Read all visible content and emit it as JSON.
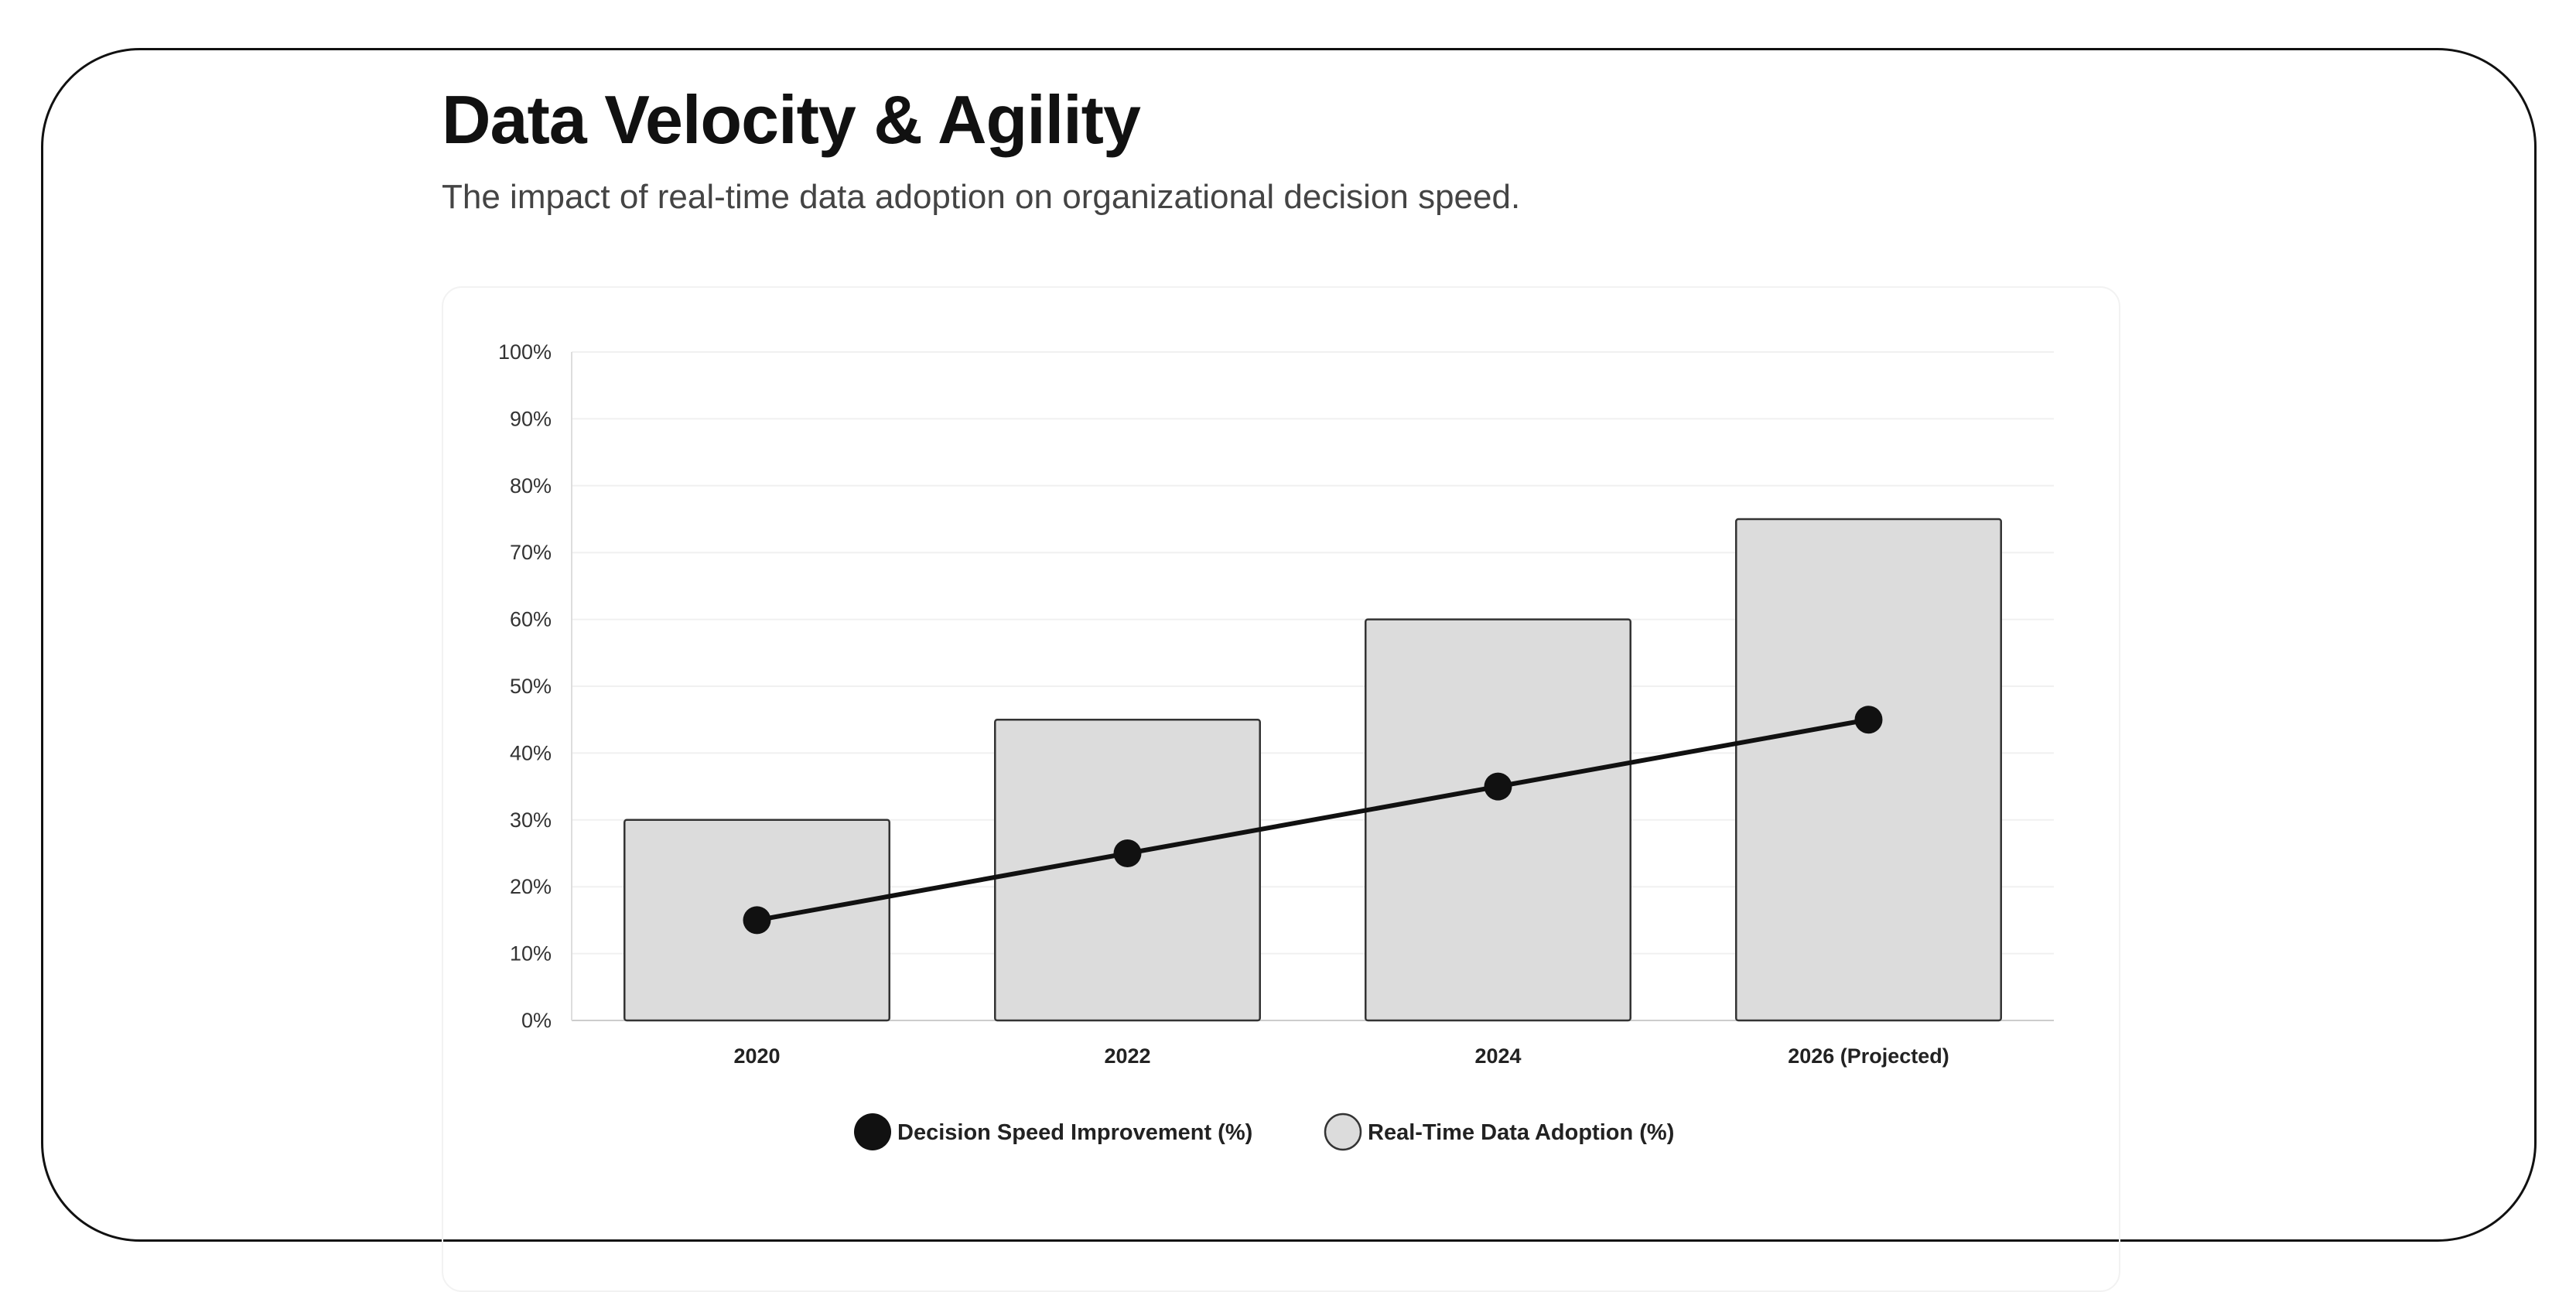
{
  "header": {
    "title": "Data Velocity & Agility",
    "subtitle": "The impact of real-time data adoption on organizational decision speed."
  },
  "chart_data": {
    "type": "bar",
    "categories": [
      "2020",
      "2022",
      "2024",
      "2026 (Projected)"
    ],
    "series": [
      {
        "name": "Real-Time Data Adoption (%)",
        "type": "bar",
        "values": [
          30,
          45,
          60,
          75
        ],
        "color": "#dcdcdc",
        "border": "#333333"
      },
      {
        "name": "Decision Speed Improvement (%)",
        "type": "line",
        "values": [
          15,
          25,
          35,
          45
        ],
        "color": "#111111"
      }
    ],
    "ylim": [
      0,
      100
    ],
    "yticks": [
      "0%",
      "10%",
      "20%",
      "30%",
      "40%",
      "50%",
      "60%",
      "70%",
      "80%",
      "90%",
      "100%"
    ],
    "grid": true,
    "legend": "bottom",
    "legend_entries": [
      "Decision Speed Improvement (%)",
      "Real-Time Data Adoption (%)"
    ]
  }
}
